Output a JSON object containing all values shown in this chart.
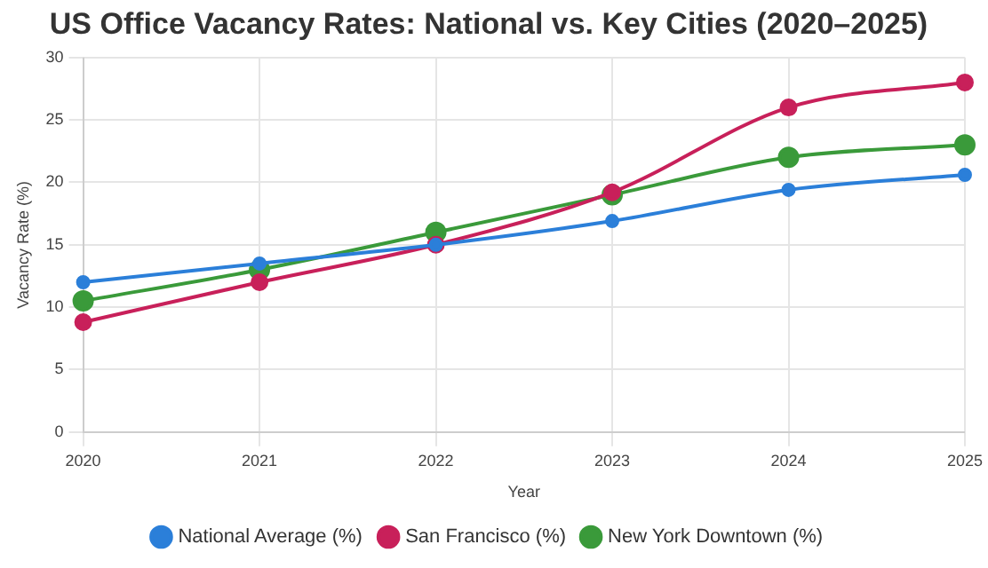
{
  "chart_data": {
    "type": "line",
    "title": "US Office Vacancy Rates: National vs. Key Cities (2020–2025)",
    "xlabel": "Year",
    "ylabel": "Vacancy Rate (%)",
    "categories": [
      "2020",
      "2021",
      "2022",
      "2023",
      "2024",
      "2025"
    ],
    "series": [
      {
        "name": "National Average (%)",
        "color": "#2b7fd9",
        "values": [
          12,
          13.5,
          15,
          16.9,
          19.4,
          20.6
        ]
      },
      {
        "name": "San Francisco (%)",
        "color": "#c8205a",
        "values": [
          8.8,
          12,
          15,
          19.2,
          26,
          28
        ]
      },
      {
        "name": "New York Downtown (%)",
        "color": "#3a9a3a",
        "values": [
          10.5,
          13,
          16,
          19,
          22,
          23
        ]
      }
    ],
    "ylim": [
      0,
      30
    ],
    "yticks": [
      0,
      5,
      10,
      15,
      20,
      25,
      30
    ],
    "grid": true,
    "legend": "bottom",
    "marker": "circle",
    "line_style": "solid"
  }
}
